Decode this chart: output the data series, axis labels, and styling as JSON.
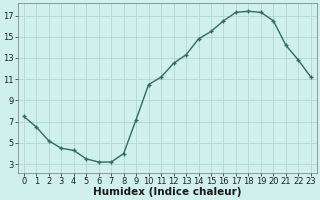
{
  "xlabel": "Humidex (Indice chaleur)",
  "ylabel": "",
  "x": [
    0,
    1,
    2,
    3,
    4,
    5,
    6,
    7,
    8,
    9,
    10,
    11,
    12,
    13,
    14,
    15,
    16,
    17,
    18,
    19,
    20,
    21,
    22,
    23
  ],
  "y": [
    7.5,
    6.5,
    5.2,
    4.5,
    4.3,
    3.5,
    3.2,
    3.2,
    4.0,
    7.2,
    10.5,
    11.2,
    12.5,
    13.3,
    14.8,
    15.5,
    16.5,
    17.3,
    17.4,
    17.3,
    16.5,
    14.2,
    12.8,
    11.2
  ],
  "line_color": "#2d6e5e",
  "bg_color": "#cff0ec",
  "grid_color": "#b0d0cc",
  "marker": "+",
  "yticks": [
    3,
    5,
    7,
    9,
    11,
    13,
    15,
    17
  ],
  "xticks": [
    0,
    1,
    2,
    3,
    4,
    5,
    6,
    7,
    8,
    9,
    10,
    11,
    12,
    13,
    14,
    15,
    16,
    17,
    18,
    19,
    20,
    21,
    22,
    23
  ],
  "ylim": [
    2.2,
    18.2
  ],
  "xlim": [
    -0.5,
    23.5
  ],
  "tick_fontsize": 6.0,
  "xlabel_fontsize": 7.5,
  "marker_size": 3.5,
  "linewidth": 1.0
}
